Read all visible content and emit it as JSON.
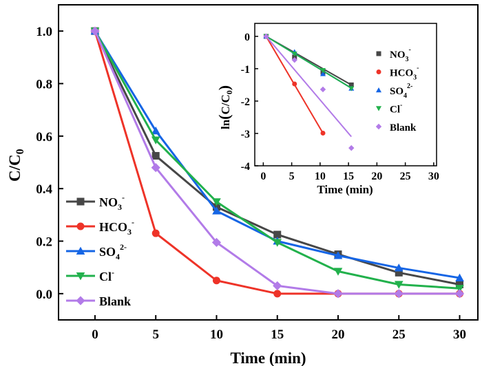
{
  "chart_data": [
    {
      "type": "line",
      "xlabel": "Time (min)",
      "ylabel": "C/C0",
      "ylabel_main": "C/C",
      "ylabel_sub": "0",
      "xlim": [
        -3,
        31.5
      ],
      "ylim": [
        -0.1,
        1.1
      ],
      "xticks": [
        0,
        5,
        10,
        15,
        20,
        25,
        30
      ],
      "yticks": [
        0.0,
        0.2,
        0.4,
        0.6,
        0.8,
        1.0
      ],
      "ytick_labels": [
        "0.0",
        "0.2",
        "0.4",
        "0.6",
        "0.8",
        "1.0"
      ],
      "legend": "bottom-left",
      "x": [
        0,
        5,
        10,
        15,
        20,
        25,
        30
      ],
      "series": [
        {
          "name": "NO3-",
          "label_main": "NO",
          "label_sub": "3",
          "label_sup": "-",
          "color": "#474747",
          "marker": "square",
          "values": [
            1.0,
            0.525,
            0.33,
            0.225,
            0.15,
            0.08,
            0.035
          ]
        },
        {
          "name": "HCO3-",
          "label_main": "HCO",
          "label_sub": "3",
          "label_sup": "-",
          "color": "#ee3328",
          "marker": "circle",
          "values": [
            1.0,
            0.23,
            0.05,
            0.0,
            0.0,
            0.0,
            0.0
          ]
        },
        {
          "name": "SO42-",
          "label_main": "SO",
          "label_sub": "4",
          "label_sup": "2-",
          "color": "#1565e5",
          "marker": "triangle-up",
          "values": [
            1.0,
            0.62,
            0.315,
            0.2,
            0.145,
            0.098,
            0.06
          ]
        },
        {
          "name": "Cl-",
          "label_main": "Cl",
          "label_sub": "",
          "label_sup": "-",
          "color": "#22b14c",
          "marker": "triangle-down",
          "values": [
            1.0,
            0.585,
            0.35,
            0.195,
            0.085,
            0.035,
            0.02
          ]
        },
        {
          "name": "Blank",
          "label_main": "Blank",
          "label_sub": "",
          "label_sup": "",
          "color": "#b27be8",
          "marker": "diamond",
          "values": [
            1.0,
            0.48,
            0.195,
            0.03,
            0.0,
            0.0,
            0.0
          ]
        }
      ]
    },
    {
      "type": "scatter",
      "xlabel": "Time (min)",
      "ylabel": "ln(C/C0)",
      "ylabel_parts": [
        "ln",
        "(",
        "C/C",
        "0",
        ")"
      ],
      "xlim": [
        -1.5,
        30.5
      ],
      "ylim": [
        -4,
        0.4
      ],
      "xticks": [
        0,
        5,
        10,
        15,
        20,
        25,
        30
      ],
      "yticks": [
        -4,
        -3,
        -2,
        -1,
        0
      ],
      "legend": "top-right",
      "x": [
        0.5,
        5.5,
        10.5,
        15.5
      ],
      "series": [
        {
          "name": "NO3-",
          "label_main": "NO",
          "label_sub": "3",
          "label_sup": "-",
          "color": "#474747",
          "marker": "square",
          "values": [
            0,
            -0.64,
            -1.11,
            -1.5
          ],
          "fit": [
            [
              0.5,
              0.0
            ],
            [
              15.5,
              -1.5
            ]
          ]
        },
        {
          "name": "HCO3-",
          "label_main": "HCO",
          "label_sub": "3",
          "label_sup": "-",
          "color": "#ee3328",
          "marker": "circle",
          "values": [
            0,
            -1.47,
            -2.99,
            null
          ],
          "fit": [
            [
              0.5,
              0.0
            ],
            [
              10.5,
              -2.99
            ]
          ]
        },
        {
          "name": "SO42-",
          "label_main": "SO",
          "label_sub": "4",
          "label_sup": "2-",
          "color": "#1565e5",
          "marker": "triangle-up",
          "values": [
            0,
            -0.48,
            -1.16,
            -1.61
          ],
          "fit": [
            [
              0.5,
              0.0
            ],
            [
              15.5,
              -1.6
            ]
          ]
        },
        {
          "name": "Cl-",
          "label_main": "Cl",
          "label_sub": "",
          "label_sup": "-",
          "color": "#22b14c",
          "marker": "triangle-down",
          "values": [
            0,
            -0.54,
            -1.05,
            -1.61
          ],
          "fit": [
            [
              0.5,
              0.0
            ],
            [
              15.5,
              -1.6
            ]
          ]
        },
        {
          "name": "Blank",
          "label_main": "Blank",
          "label_sub": "",
          "label_sup": "",
          "color": "#b27be8",
          "marker": "diamond",
          "values": [
            0,
            -0.73,
            -1.64,
            -3.45
          ],
          "fit": [
            [
              0.5,
              0.0
            ],
            [
              15.5,
              -3.1
            ]
          ]
        }
      ]
    }
  ]
}
